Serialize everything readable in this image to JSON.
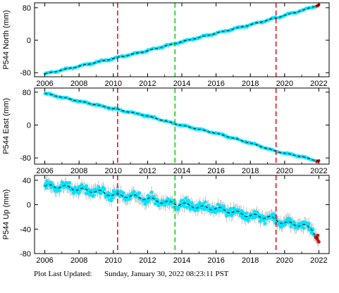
{
  "footer": {
    "label": "Plot Last Updated:",
    "timestamp": "Sunday, January 30, 2022 08:23:11 PST"
  },
  "colors": {
    "data": "#00e5ff",
    "error_bar": "#a8a8a8",
    "model": "#000000",
    "recent": "#d01010",
    "offset_line_red": "#e8101a",
    "offset_line_green": "#1ec81e"
  },
  "chart_data": [
    {
      "type": "scatter",
      "ylabel": "P544 North (mm)",
      "xlim": [
        2005.4,
        2022.6
      ],
      "ylim": [
        -90,
        92
      ],
      "x_ticks": [
        2006,
        2008,
        2010,
        2012,
        2014,
        2016,
        2018,
        2020,
        2022
      ],
      "x_tick_labels": [
        "2006",
        "2008",
        "2010",
        "2012",
        "2014",
        "2016",
        "2018",
        "2020",
        "2022"
      ],
      "y_ticks": [
        -80,
        0,
        80
      ],
      "y_tick_labels": [
        "-80",
        "0",
        "80"
      ],
      "grid": false,
      "series": [
        {
          "x": [
            2006.0,
            2008.0,
            2010.0,
            2012.0,
            2013.5,
            2016.0,
            2018.0,
            2019.5,
            2021.0,
            2022.0
          ],
          "y": [
            -83,
            -64,
            -45,
            -26,
            -9,
            17,
            38,
            55,
            73,
            87
          ],
          "error": 3
        }
      ],
      "vlines": [
        {
          "x": 2010.25,
          "color": "red"
        },
        {
          "x": 2013.6,
          "color": "green"
        },
        {
          "x": 2019.5,
          "color": "red"
        }
      ]
    },
    {
      "type": "scatter",
      "ylabel": "P544 East (mm)",
      "xlim": [
        2005.4,
        2022.6
      ],
      "ylim": [
        -95,
        90
      ],
      "x_ticks": [
        2006,
        2008,
        2010,
        2012,
        2014,
        2016,
        2018,
        2020,
        2022
      ],
      "x_tick_labels": [
        "2006",
        "2008",
        "2010",
        "2012",
        "2014",
        "2016",
        "2018",
        "2020",
        "2022"
      ],
      "y_ticks": [
        -80,
        0,
        80
      ],
      "y_tick_labels": [
        "-80",
        "0",
        "80"
      ],
      "grid": false,
      "series": [
        {
          "x": [
            2006.0,
            2008.0,
            2010.0,
            2012.0,
            2013.6,
            2016.0,
            2018.0,
            2019.6,
            2021.0,
            2022.0
          ],
          "y": [
            77,
            58,
            40,
            22,
            3,
            -20,
            -44,
            -65,
            -77,
            -88
          ],
          "error": 3
        }
      ],
      "vlines": [
        {
          "x": 2010.25,
          "color": "red"
        },
        {
          "x": 2013.6,
          "color": "green"
        },
        {
          "x": 2019.5,
          "color": "red"
        }
      ]
    },
    {
      "type": "scatter",
      "ylabel": "P544 Up (mm)",
      "xlim": [
        2005.4,
        2022.6
      ],
      "ylim": [
        -80,
        48
      ],
      "x_ticks": [
        2006,
        2008,
        2010,
        2012,
        2014,
        2016,
        2018,
        2020,
        2022
      ],
      "x_tick_labels": [
        "2006",
        "2008",
        "2010",
        "2012",
        "2014",
        "2016",
        "2018",
        "2020",
        "2022"
      ],
      "y_ticks": [
        -80,
        -40,
        0,
        40
      ],
      "y_tick_labels": [
        "-80",
        "-40",
        "0",
        "40"
      ],
      "grid": false,
      "series": [
        {
          "x": [
            2006.0,
            2007.0,
            2008.0,
            2009.0,
            2010.0,
            2011.0,
            2012.0,
            2013.0,
            2014.0,
            2015.0,
            2016.0,
            2017.0,
            2018.0,
            2019.0,
            2020.0,
            2021.0,
            2021.6,
            2022.0
          ],
          "y": [
            30,
            30,
            25,
            22,
            16,
            14,
            10,
            4,
            1,
            -4,
            -6,
            -12,
            -18,
            -20,
            -30,
            -33,
            -40,
            -57
          ],
          "error": 10
        }
      ],
      "vlines": [
        {
          "x": 2010.25,
          "color": "red"
        },
        {
          "x": 2013.6,
          "color": "green"
        },
        {
          "x": 2019.5,
          "color": "red"
        }
      ]
    }
  ]
}
